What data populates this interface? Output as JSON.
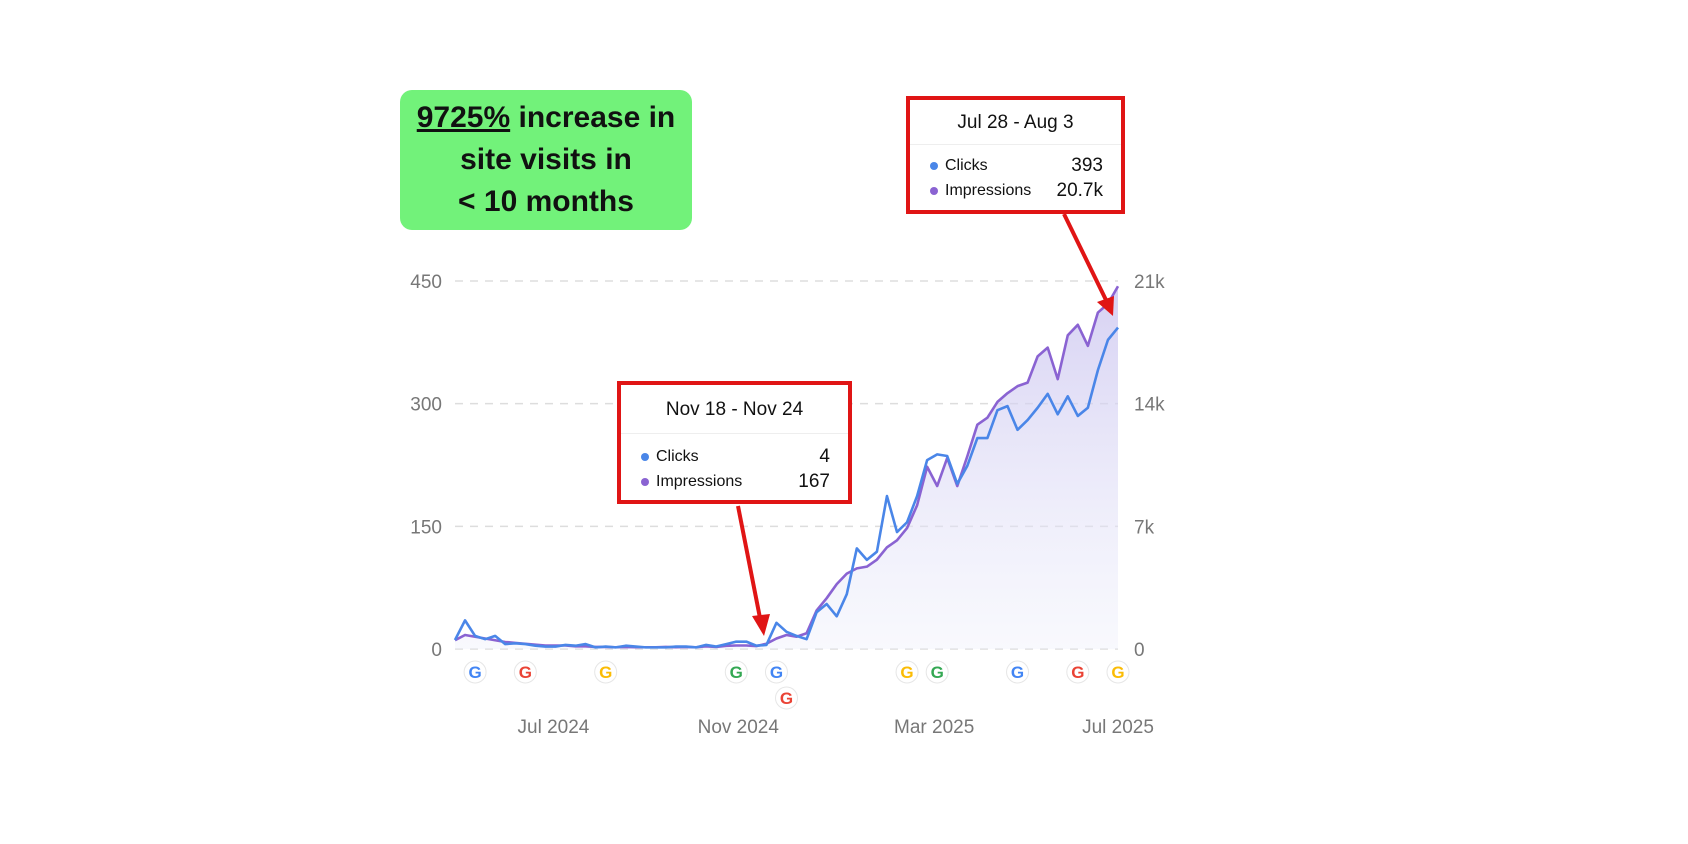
{
  "headline": {
    "percent": "9725%",
    "line1_rest": " increase in",
    "line2": "site visits in",
    "line3": "< 10 months"
  },
  "tooltips": [
    {
      "date_range": "Jul 28 - Aug 3",
      "clicks_label": "Clicks",
      "clicks": "393",
      "impressions_label": "Impressions",
      "impressions": "20.7k"
    },
    {
      "date_range": "Nov 18 - Nov 24",
      "clicks_label": "Clicks",
      "clicks": "4",
      "impressions_label": "Impressions",
      "impressions": "167"
    }
  ],
  "chart_data": {
    "type": "line",
    "title": "",
    "x_unit": "week",
    "x_tick_labels": [
      "Jul 2024",
      "Nov 2024",
      "Mar 2025",
      "Jul 2025"
    ],
    "x_tick_week_index": [
      9.8,
      28.2,
      47.7,
      66
    ],
    "left_axis": {
      "label": "Clicks",
      "ticks": [
        "0",
        "150",
        "300",
        "450"
      ],
      "range": [
        0,
        450
      ]
    },
    "right_axis": {
      "label": "Impressions",
      "ticks": [
        "0",
        "7k",
        "14k",
        "21k"
      ],
      "range": [
        0,
        21000
      ]
    },
    "grid": true,
    "series": [
      {
        "name": "Clicks",
        "axis": "left",
        "color": "#4a86e8",
        "values": [
          11,
          35,
          16,
          12,
          16,
          6,
          7,
          6,
          4,
          3,
          3,
          5,
          4,
          6,
          2,
          3,
          2,
          4,
          3,
          2,
          2,
          2,
          3,
          3,
          2,
          5,
          3,
          6,
          9,
          9,
          4,
          5,
          32,
          21,
          16,
          12,
          45,
          55,
          40,
          67,
          123,
          109,
          119,
          187,
          143,
          155,
          187,
          231,
          238,
          236,
          202,
          224,
          258,
          258,
          292,
          297,
          268,
          280,
          295,
          312,
          287,
          309,
          285,
          295,
          341,
          378,
          393
        ]
      },
      {
        "name": "Impressions",
        "axis": "right",
        "color": "#8a63d2",
        "values": [
          500,
          800,
          700,
          600,
          500,
          400,
          350,
          300,
          250,
          200,
          200,
          200,
          150,
          150,
          120,
          120,
          100,
          120,
          100,
          100,
          100,
          120,
          100,
          120,
          100,
          150,
          120,
          180,
          200,
          200,
          167,
          300,
          600,
          800,
          700,
          900,
          2200,
          2900,
          3700,
          4300,
          4600,
          4700,
          5100,
          5800,
          6200,
          6900,
          8200,
          10400,
          9300,
          10900,
          9300,
          11000,
          12800,
          13200,
          14100,
          14600,
          15000,
          15200,
          16700,
          17200,
          15400,
          17900,
          18500,
          17300,
          19200,
          19700,
          20700
        ]
      }
    ],
    "google_update_markers_week_index": [
      2,
      7,
      15,
      28,
      32,
      33,
      45,
      48,
      56,
      62,
      66
    ],
    "marker_glyph": "G"
  }
}
